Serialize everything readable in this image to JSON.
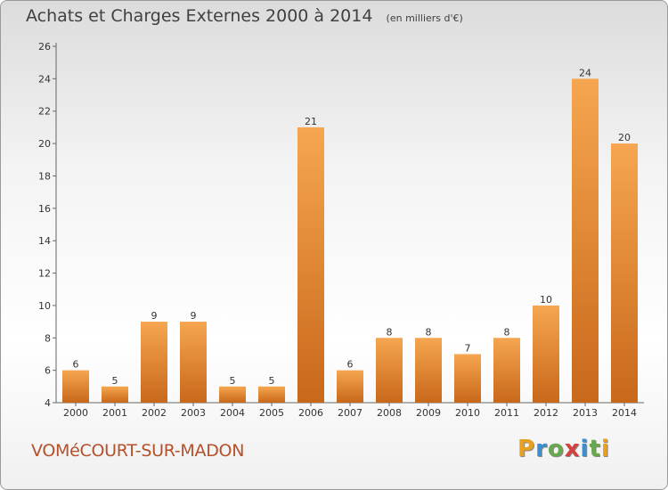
{
  "header": {
    "title": "Achats et Charges Externes 2000 à 2014",
    "subtitle": "(en milliers d'€)"
  },
  "footer": {
    "place": "VOMéCOURT-SUR-MADON",
    "brand": "Proxiti",
    "brand_colors": [
      "#e8a020",
      "#3a8fd0",
      "#6aa84f",
      "#d64040",
      "#3a8fd0",
      "#6aa84f",
      "#e8a020"
    ]
  },
  "colors": {
    "bar_light": "#f6a650",
    "bar_dark": "#c8681a",
    "accent": "#b5502a"
  },
  "chart_data": {
    "type": "bar",
    "categories": [
      "2000",
      "2001",
      "2002",
      "2003",
      "2004",
      "2005",
      "2006",
      "2007",
      "2008",
      "2009",
      "2010",
      "2011",
      "2012",
      "2013",
      "2014"
    ],
    "values": [
      6,
      5,
      9,
      9,
      5,
      5,
      21,
      6,
      8,
      8,
      7,
      8,
      10,
      24,
      20
    ],
    "ylim": [
      4,
      26
    ],
    "yticks": [
      4,
      6,
      8,
      10,
      12,
      14,
      16,
      18,
      20,
      22,
      24,
      26
    ],
    "grid": false,
    "legend": "none",
    "xlabel": "",
    "ylabel": ""
  }
}
